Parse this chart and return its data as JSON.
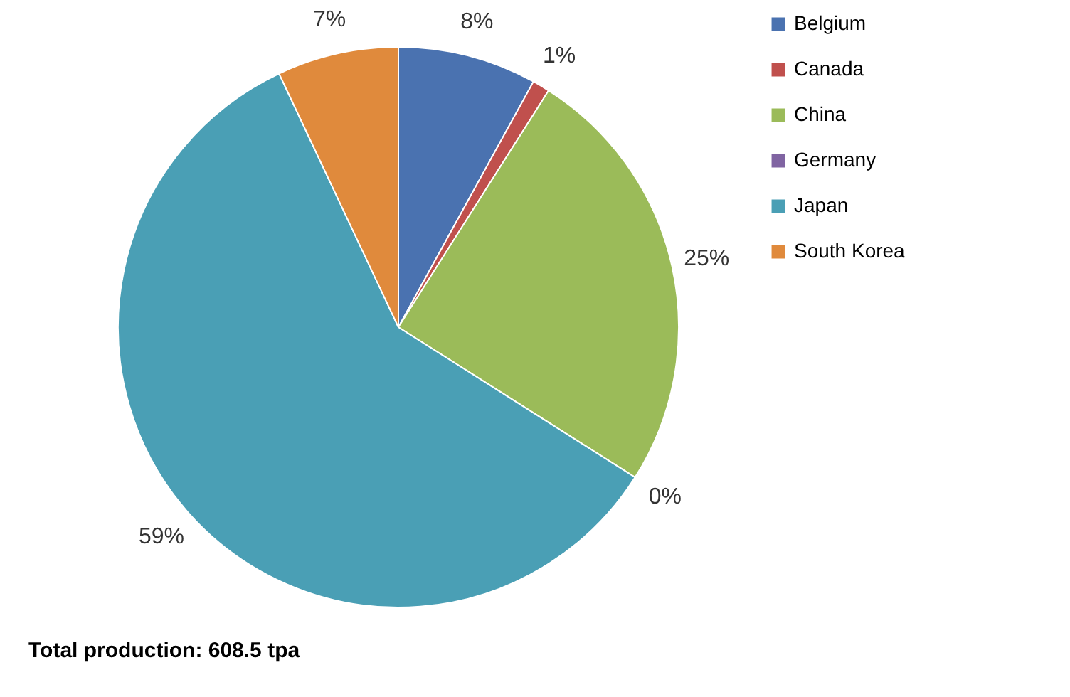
{
  "chart_data": {
    "type": "pie",
    "categories": [
      "Belgium",
      "Canada",
      "China",
      "Germany",
      "Japan",
      "South Korea"
    ],
    "values": [
      8,
      1,
      25,
      0,
      59,
      7
    ],
    "value_labels": [
      "8%",
      "1%",
      "25%",
      "0%",
      "59%",
      "7%"
    ],
    "colors": [
      "#4a72b0",
      "#c0504d",
      "#9bbb59",
      "#8064a2",
      "#4a9fb5",
      "#e08a3c"
    ],
    "legend": "right",
    "annotations": [
      "Total production: 608.5 tpa"
    ]
  }
}
